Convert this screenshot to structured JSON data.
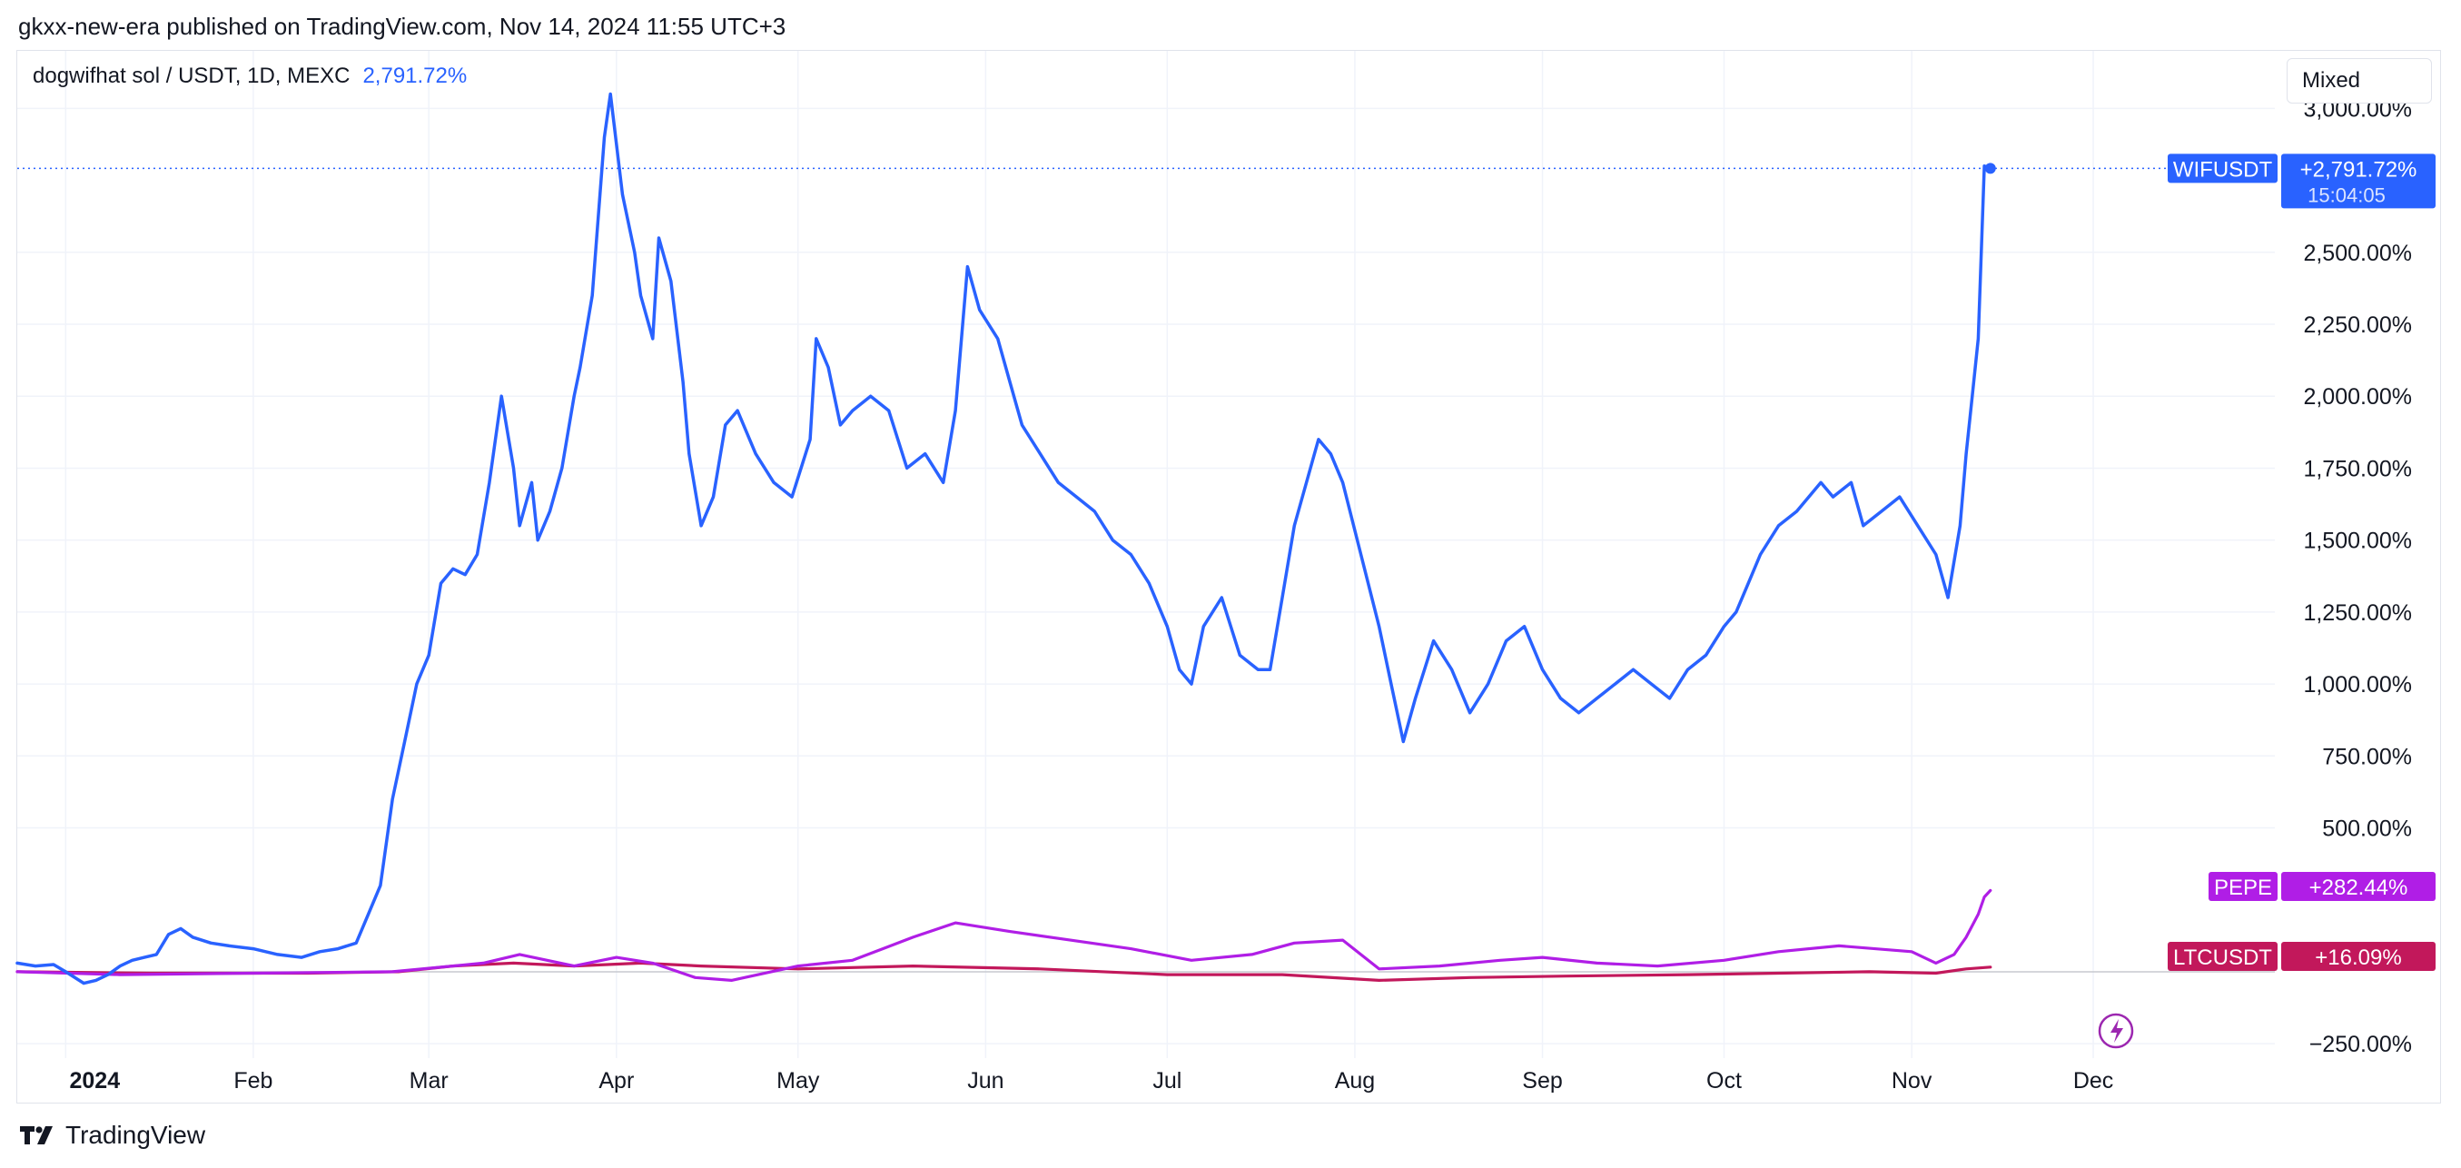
{
  "header": {
    "published": "gkxx-new-era published on TradingView.com, Nov 14, 2024 11:55 UTC+3"
  },
  "legend": {
    "symbol": "dogwifhat sol / USDT, 1D, MEXC",
    "value": "2,791.72%"
  },
  "toolbar": {
    "mode_label": "Mixed"
  },
  "footer": {
    "brand": "TradingView"
  },
  "colors": {
    "wif": "#2962ff",
    "pepe": "#b01ee6",
    "ltc": "#c2185b",
    "grid": "#f0f3fa",
    "axis_text": "#131722"
  },
  "icons": [
    "tradingview-logo-icon",
    "lightning-icon"
  ],
  "chart_data": {
    "type": "line",
    "title": "",
    "xlabel": "",
    "ylabel": "",
    "y_unit": "%",
    "ylim": [
      -300,
      3200
    ],
    "y_ticks": [
      -250,
      500,
      750,
      1000,
      1250,
      1500,
      1750,
      2000,
      2250,
      2500,
      3000
    ],
    "y_tick_labels": [
      "−250.00%",
      "500.00%",
      "750.00%",
      "1,000.00%",
      "1,250.00%",
      "1,500.00%",
      "1,750.00%",
      "2,000.00%",
      "2,250.00%",
      "2,500.00%",
      "3,000.00%"
    ],
    "x_range": [
      "2023-12-24",
      "2024-12-31"
    ],
    "x_ticks": [
      {
        "date": "2024-01-01",
        "label": "2024"
      },
      {
        "date": "2024-02-01",
        "label": "Feb"
      },
      {
        "date": "2024-03-01",
        "label": "Mar"
      },
      {
        "date": "2024-04-01",
        "label": "Apr"
      },
      {
        "date": "2024-05-01",
        "label": "May"
      },
      {
        "date": "2024-06-01",
        "label": "Jun"
      },
      {
        "date": "2024-07-01",
        "label": "Jul"
      },
      {
        "date": "2024-08-01",
        "label": "Aug"
      },
      {
        "date": "2024-09-01",
        "label": "Sep"
      },
      {
        "date": "2024-10-01",
        "label": "Oct"
      },
      {
        "date": "2024-11-01",
        "label": "Nov"
      },
      {
        "date": "2024-12-01",
        "label": "Dec"
      }
    ],
    "grid": true,
    "series": [
      {
        "name": "WIFUSDT",
        "color": "#2962ff",
        "label_value": "+2,791.72%",
        "label_sub": "15:04:05",
        "x": [
          "2023-12-24",
          "2023-12-27",
          "2023-12-30",
          "2024-01-01",
          "2024-01-04",
          "2024-01-06",
          "2024-01-08",
          "2024-01-10",
          "2024-01-12",
          "2024-01-14",
          "2024-01-16",
          "2024-01-18",
          "2024-01-20",
          "2024-01-22",
          "2024-01-25",
          "2024-01-28",
          "2024-02-01",
          "2024-02-05",
          "2024-02-09",
          "2024-02-12",
          "2024-02-15",
          "2024-02-18",
          "2024-02-20",
          "2024-02-22",
          "2024-02-24",
          "2024-02-26",
          "2024-02-28",
          "2024-03-01",
          "2024-03-03",
          "2024-03-05",
          "2024-03-07",
          "2024-03-09",
          "2024-03-11",
          "2024-03-13",
          "2024-03-15",
          "2024-03-16",
          "2024-03-18",
          "2024-03-19",
          "2024-03-21",
          "2024-03-23",
          "2024-03-25",
          "2024-03-26",
          "2024-03-28",
          "2024-03-30",
          "2024-03-31",
          "2024-04-02",
          "2024-04-04",
          "2024-04-05",
          "2024-04-07",
          "2024-04-08",
          "2024-04-10",
          "2024-04-12",
          "2024-04-13",
          "2024-04-15",
          "2024-04-17",
          "2024-04-19",
          "2024-04-21",
          "2024-04-24",
          "2024-04-27",
          "2024-04-30",
          "2024-05-03",
          "2024-05-04",
          "2024-05-06",
          "2024-05-08",
          "2024-05-10",
          "2024-05-13",
          "2024-05-16",
          "2024-05-19",
          "2024-05-22",
          "2024-05-25",
          "2024-05-27",
          "2024-05-29",
          "2024-05-31",
          "2024-06-03",
          "2024-06-05",
          "2024-06-07",
          "2024-06-10",
          "2024-06-13",
          "2024-06-16",
          "2024-06-19",
          "2024-06-22",
          "2024-06-25",
          "2024-06-28",
          "2024-07-01",
          "2024-07-03",
          "2024-07-05",
          "2024-07-07",
          "2024-07-10",
          "2024-07-13",
          "2024-07-16",
          "2024-07-18",
          "2024-07-20",
          "2024-07-22",
          "2024-07-24",
          "2024-07-26",
          "2024-07-28",
          "2024-07-30",
          "2024-08-02",
          "2024-08-05",
          "2024-08-07",
          "2024-08-09",
          "2024-08-11",
          "2024-08-14",
          "2024-08-17",
          "2024-08-20",
          "2024-08-23",
          "2024-08-26",
          "2024-08-29",
          "2024-09-01",
          "2024-09-04",
          "2024-09-07",
          "2024-09-10",
          "2024-09-13",
          "2024-09-16",
          "2024-09-19",
          "2024-09-22",
          "2024-09-25",
          "2024-09-28",
          "2024-10-01",
          "2024-10-03",
          "2024-10-05",
          "2024-10-07",
          "2024-10-10",
          "2024-10-13",
          "2024-10-15",
          "2024-10-17",
          "2024-10-19",
          "2024-10-22",
          "2024-10-24",
          "2024-10-27",
          "2024-10-30",
          "2024-11-02",
          "2024-11-05",
          "2024-11-07",
          "2024-11-09",
          "2024-11-10",
          "2024-11-11",
          "2024-11-12",
          "2024-11-13",
          "2024-11-14"
        ],
        "y": [
          30,
          20,
          25,
          0,
          -40,
          -30,
          -10,
          20,
          40,
          50,
          60,
          130,
          150,
          120,
          100,
          90,
          80,
          60,
          50,
          70,
          80,
          100,
          200,
          300,
          600,
          800,
          1000,
          1100,
          1350,
          1400,
          1380,
          1450,
          1700,
          2000,
          1750,
          1550,
          1700,
          1500,
          1600,
          1750,
          2000,
          2100,
          2350,
          2900,
          3050,
          2700,
          2500,
          2350,
          2200,
          2550,
          2400,
          2050,
          1800,
          1550,
          1650,
          1900,
          1950,
          1800,
          1700,
          1650,
          1850,
          2200,
          2100,
          1900,
          1950,
          2000,
          1950,
          1750,
          1800,
          1700,
          1950,
          2450,
          2300,
          2200,
          2050,
          1900,
          1800,
          1700,
          1650,
          1600,
          1500,
          1450,
          1350,
          1200,
          1050,
          1000,
          1200,
          1300,
          1100,
          1050,
          1050,
          1300,
          1550,
          1700,
          1850,
          1800,
          1700,
          1450,
          1200,
          1000,
          800,
          950,
          1150,
          1050,
          900,
          1000,
          1150,
          1200,
          1050,
          950,
          900,
          950,
          1000,
          1050,
          1000,
          950,
          1050,
          1100,
          1200,
          1250,
          1350,
          1450,
          1550,
          1600,
          1650,
          1700,
          1650,
          1700,
          1550,
          1600,
          1650,
          1550,
          1450,
          1300,
          1550,
          1800,
          2000,
          2200,
          2800,
          2791.72
        ]
      },
      {
        "name": "PEPE",
        "color": "#b01ee6",
        "label_value": "+282.44%",
        "x": [
          "2023-12-24",
          "2024-01-10",
          "2024-02-01",
          "2024-02-24",
          "2024-03-10",
          "2024-03-16",
          "2024-03-25",
          "2024-04-01",
          "2024-04-07",
          "2024-04-14",
          "2024-04-20",
          "2024-05-01",
          "2024-05-10",
          "2024-05-15",
          "2024-05-20",
          "2024-05-27",
          "2024-06-05",
          "2024-06-15",
          "2024-06-25",
          "2024-07-05",
          "2024-07-15",
          "2024-07-22",
          "2024-07-30",
          "2024-08-05",
          "2024-08-15",
          "2024-08-25",
          "2024-09-01",
          "2024-09-10",
          "2024-09-20",
          "2024-10-01",
          "2024-10-10",
          "2024-10-20",
          "2024-11-01",
          "2024-11-05",
          "2024-11-08",
          "2024-11-10",
          "2024-11-12",
          "2024-11-13",
          "2024-11-14"
        ],
        "y": [
          0,
          -10,
          -5,
          0,
          30,
          60,
          20,
          50,
          30,
          -20,
          -30,
          20,
          40,
          80,
          120,
          170,
          140,
          110,
          80,
          40,
          60,
          100,
          110,
          10,
          20,
          40,
          50,
          30,
          20,
          40,
          70,
          90,
          70,
          30,
          60,
          120,
          200,
          260,
          282.44
        ]
      },
      {
        "name": "LTCUSDT",
        "color": "#c2185b",
        "label_value": "+16.09%",
        "x": [
          "2023-12-24",
          "2024-01-15",
          "2024-02-10",
          "2024-02-25",
          "2024-03-05",
          "2024-03-15",
          "2024-03-25",
          "2024-04-05",
          "2024-04-15",
          "2024-05-01",
          "2024-05-20",
          "2024-06-10",
          "2024-07-01",
          "2024-07-20",
          "2024-08-05",
          "2024-08-20",
          "2024-09-05",
          "2024-09-25",
          "2024-10-10",
          "2024-10-25",
          "2024-11-05",
          "2024-11-10",
          "2024-11-14"
        ],
        "y": [
          0,
          -5,
          -5,
          0,
          20,
          30,
          20,
          30,
          20,
          10,
          20,
          10,
          -10,
          -10,
          -30,
          -20,
          -15,
          -10,
          -5,
          0,
          -5,
          10,
          16.09
        ]
      }
    ]
  }
}
